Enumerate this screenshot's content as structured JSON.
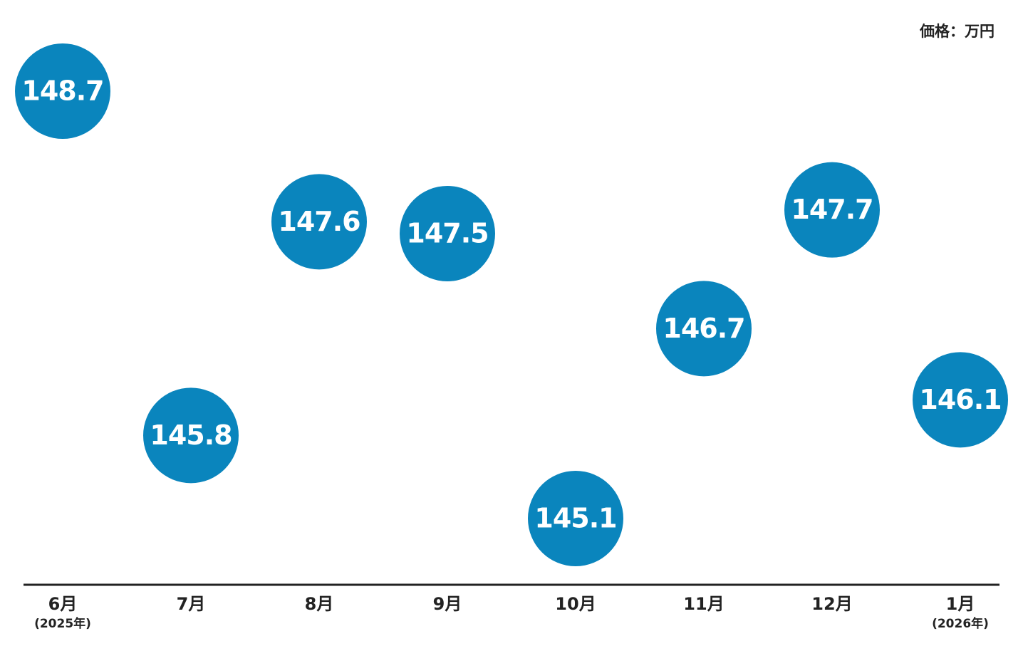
{
  "chart_data": {
    "type": "line",
    "unit_label": "価格：万円",
    "categories": [
      "6月",
      "7月",
      "8月",
      "9月",
      "10月",
      "11月",
      "12月",
      "1月"
    ],
    "category_notes": [
      "(2025年)",
      null,
      null,
      null,
      null,
      null,
      null,
      "(2026年)"
    ],
    "series": [
      {
        "color": "#0a85bd",
        "values": [
          148.7,
          145.8,
          147.6,
          147.5,
          145.1,
          146.7,
          147.7,
          146.1
        ]
      }
    ]
  }
}
